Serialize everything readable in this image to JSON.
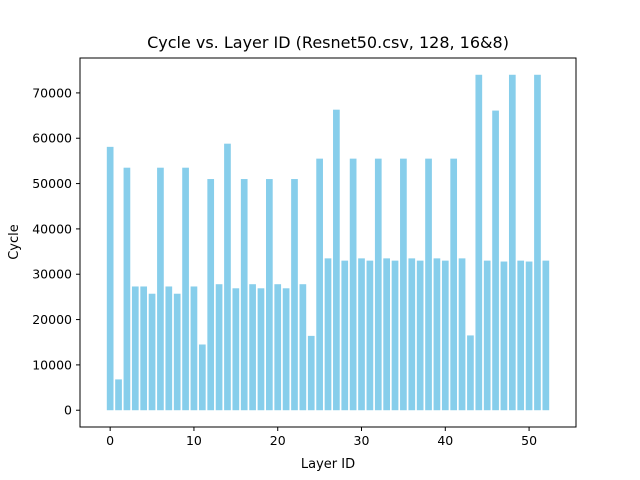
{
  "chart_data": {
    "type": "bar",
    "title": "Cycle vs. Layer ID (Resnet50.csv, 128, 16&8)",
    "xlabel": "Layer ID",
    "ylabel": "Cycle",
    "x": [
      0,
      1,
      2,
      3,
      4,
      5,
      6,
      7,
      8,
      9,
      10,
      11,
      12,
      13,
      14,
      15,
      16,
      17,
      18,
      19,
      20,
      21,
      22,
      23,
      24,
      25,
      26,
      27,
      28,
      29,
      30,
      31,
      32,
      33,
      34,
      35,
      36,
      37,
      38,
      39,
      40,
      41,
      42,
      43,
      44,
      45,
      46,
      47,
      48,
      49,
      50,
      51,
      52
    ],
    "values": [
      58100,
      6800,
      53500,
      27300,
      27300,
      25700,
      53500,
      27300,
      25700,
      53500,
      27300,
      14500,
      51000,
      27800,
      58800,
      26900,
      51000,
      27800,
      26900,
      51000,
      27800,
      26900,
      51000,
      27800,
      16400,
      55500,
      33500,
      66300,
      33000,
      55500,
      33500,
      33000,
      55500,
      33500,
      33000,
      55500,
      33500,
      33000,
      55500,
      33500,
      33000,
      55500,
      33500,
      16500,
      74000,
      33000,
      66100,
      32800,
      74000,
      33000,
      32800,
      74000,
      33000
    ],
    "xlim": [
      -3.6,
      55.6
    ],
    "ylim": [
      -3700,
      77700
    ],
    "xticks": [
      "0",
      "10",
      "20",
      "30",
      "40",
      "50"
    ],
    "yticks": [
      "0",
      "10000",
      "20000",
      "30000",
      "40000",
      "50000",
      "60000",
      "70000"
    ],
    "bar_color": "#87ceeb",
    "grid": false,
    "legend": "none"
  }
}
